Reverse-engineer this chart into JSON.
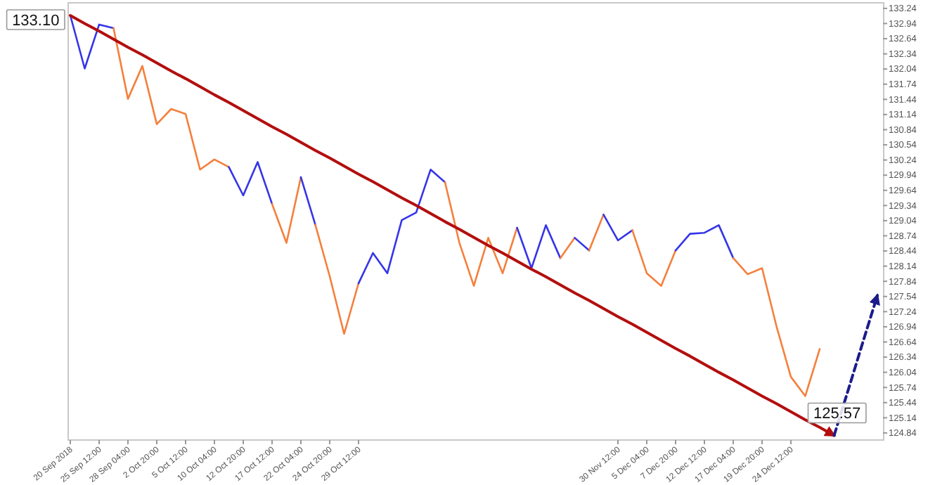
{
  "chart_data": {
    "type": "line",
    "grid": false,
    "categories": [
      "20 Sep 2018",
      null,
      "25 Sep 12:00",
      null,
      "28 Sep 04:00",
      null,
      "2 Oct 20:00",
      null,
      "5 Oct 12:00",
      null,
      "10 Oct 04:00",
      null,
      "12 Oct 20:00",
      null,
      "17 Oct 12:00",
      null,
      "22 Oct 04:00",
      null,
      "24 Oct 20:00",
      null,
      "29 Oct 12:00",
      null,
      null,
      null,
      null,
      null,
      null,
      null,
      null,
      null,
      null,
      null,
      null,
      null,
      null,
      null,
      null,
      null,
      "30 Nov 12:00",
      null,
      "5 Dec 04:00",
      null,
      "7 Dec 20:00",
      null,
      "12 Dec 12:00",
      null,
      "17 Dec 04:00",
      null,
      "19 Dec 20:00",
      null,
      "24 Dec 12:00",
      null,
      null,
      null,
      null,
      null,
      null
    ],
    "ylim": [
      124.7,
      133.35
    ],
    "yticks": [
      124.84,
      125.14,
      125.44,
      125.74,
      126.04,
      126.34,
      126.64,
      126.94,
      127.24,
      127.54,
      127.84,
      128.14,
      128.44,
      128.74,
      129.04,
      129.34,
      129.64,
      129.94,
      130.24,
      130.54,
      130.84,
      131.14,
      131.44,
      131.74,
      132.04,
      132.34,
      132.64,
      132.94,
      133.24
    ],
    "annotations": [
      "133.10",
      "125.57"
    ],
    "series": [
      {
        "color": "#3535e8",
        "values": [
          133.1,
          132.05,
          132.92,
          132.85,
          null,
          null,
          null,
          null,
          null,
          null,
          null,
          null,
          null,
          null,
          null,
          null,
          null,
          null,
          null,
          null,
          null,
          null,
          null,
          null,
          null,
          null,
          null,
          null,
          null,
          null,
          null,
          null,
          null,
          null,
          null,
          null,
          null,
          null,
          null,
          null,
          null,
          null,
          null,
          null,
          null,
          null,
          null,
          null,
          null,
          null,
          null,
          null,
          null,
          null,
          null,
          null,
          null
        ]
      },
      {
        "color": "#f57f3c",
        "values": [
          null,
          null,
          null,
          132.85,
          131.45,
          132.1,
          130.95,
          131.25,
          131.15,
          130.05,
          130.25,
          130.1,
          null,
          null,
          null,
          null,
          null,
          null,
          null,
          null,
          null,
          null,
          null,
          null,
          null,
          null,
          null,
          null,
          null,
          null,
          null,
          null,
          null,
          null,
          null,
          null,
          null,
          null,
          null,
          null,
          null,
          null,
          null,
          null,
          null,
          null,
          null,
          null,
          null,
          null,
          null,
          null,
          null,
          null,
          null,
          null,
          null
        ]
      },
      {
        "color": "#3535e8",
        "values": [
          null,
          null,
          null,
          null,
          null,
          null,
          null,
          null,
          null,
          null,
          null,
          130.1,
          129.54,
          130.2,
          129.37,
          null,
          null,
          null,
          null,
          null,
          null,
          null,
          null,
          null,
          null,
          null,
          null,
          null,
          null,
          null,
          null,
          null,
          null,
          null,
          null,
          null,
          null,
          null,
          null,
          null,
          null,
          null,
          null,
          null,
          null,
          null,
          null,
          null,
          null,
          null,
          null,
          null,
          null,
          null,
          null,
          null,
          null
        ]
      },
      {
        "color": "#f57f3c",
        "values": [
          null,
          null,
          null,
          null,
          null,
          null,
          null,
          null,
          null,
          null,
          null,
          null,
          null,
          null,
          129.37,
          128.6,
          129.9,
          null,
          null,
          null,
          null,
          null,
          null,
          null,
          null,
          null,
          null,
          null,
          null,
          null,
          null,
          null,
          null,
          null,
          null,
          null,
          null,
          null,
          null,
          null,
          null,
          null,
          null,
          null,
          null,
          null,
          null,
          null,
          null,
          null,
          null,
          null,
          null,
          null,
          null,
          null,
          null
        ]
      },
      {
        "color": "#3535e8",
        "values": [
          null,
          null,
          null,
          null,
          null,
          null,
          null,
          null,
          null,
          null,
          null,
          null,
          null,
          null,
          null,
          null,
          129.9,
          128.96,
          null,
          null,
          null,
          null,
          null,
          null,
          null,
          null,
          null,
          null,
          null,
          null,
          null,
          null,
          null,
          null,
          null,
          null,
          null,
          null,
          null,
          null,
          null,
          null,
          null,
          null,
          null,
          null,
          null,
          null,
          null,
          null,
          null,
          null,
          null,
          null,
          null,
          null,
          null
        ]
      },
      {
        "color": "#f57f3c",
        "values": [
          null,
          null,
          null,
          null,
          null,
          null,
          null,
          null,
          null,
          null,
          null,
          null,
          null,
          null,
          null,
          null,
          null,
          128.96,
          127.94,
          126.8,
          127.8,
          null,
          null,
          null,
          null,
          null,
          null,
          null,
          null,
          null,
          null,
          null,
          null,
          null,
          null,
          null,
          null,
          null,
          null,
          null,
          null,
          null,
          null,
          null,
          null,
          null,
          null,
          null,
          null,
          null,
          null,
          null,
          null,
          null,
          null,
          null,
          null
        ]
      },
      {
        "color": "#3535e8",
        "values": [
          null,
          null,
          null,
          null,
          null,
          null,
          null,
          null,
          null,
          null,
          null,
          null,
          null,
          null,
          null,
          null,
          null,
          null,
          null,
          null,
          127.8,
          128.4,
          128.0,
          129.05,
          129.2,
          130.05,
          129.8,
          null,
          null,
          null,
          null,
          null,
          null,
          null,
          null,
          null,
          null,
          null,
          null,
          null,
          null,
          null,
          null,
          null,
          null,
          null,
          null,
          null,
          null,
          null,
          null,
          null,
          null,
          null,
          null,
          null,
          null
        ]
      },
      {
        "color": "#f57f3c",
        "values": [
          null,
          null,
          null,
          null,
          null,
          null,
          null,
          null,
          null,
          null,
          null,
          null,
          null,
          null,
          null,
          null,
          null,
          null,
          null,
          null,
          null,
          null,
          null,
          null,
          null,
          null,
          129.8,
          128.6,
          127.75,
          128.7,
          128.0,
          128.9,
          null,
          null,
          null,
          null,
          null,
          null,
          null,
          null,
          null,
          null,
          null,
          null,
          null,
          null,
          null,
          null,
          null,
          null,
          null,
          null,
          null,
          null,
          null,
          null,
          null
        ]
      },
      {
        "color": "#3535e8",
        "values": [
          null,
          null,
          null,
          null,
          null,
          null,
          null,
          null,
          null,
          null,
          null,
          null,
          null,
          null,
          null,
          null,
          null,
          null,
          null,
          null,
          null,
          null,
          null,
          null,
          null,
          null,
          null,
          null,
          null,
          null,
          null,
          128.9,
          128.1,
          128.95,
          128.3,
          null,
          null,
          null,
          null,
          null,
          null,
          null,
          null,
          null,
          null,
          null,
          null,
          null,
          null,
          null,
          null,
          null,
          null,
          null,
          null,
          null,
          null
        ]
      },
      {
        "color": "#f57f3c",
        "values": [
          null,
          null,
          null,
          null,
          null,
          null,
          null,
          null,
          null,
          null,
          null,
          null,
          null,
          null,
          null,
          null,
          null,
          null,
          null,
          null,
          null,
          null,
          null,
          null,
          null,
          null,
          null,
          null,
          null,
          null,
          null,
          null,
          null,
          null,
          128.3,
          128.7,
          null,
          null,
          null,
          null,
          null,
          null,
          null,
          null,
          null,
          null,
          null,
          null,
          null,
          null,
          null,
          null,
          null,
          null,
          null,
          null,
          null
        ]
      },
      {
        "color": "#3535e8",
        "values": [
          null,
          null,
          null,
          null,
          null,
          null,
          null,
          null,
          null,
          null,
          null,
          null,
          null,
          null,
          null,
          null,
          null,
          null,
          null,
          null,
          null,
          null,
          null,
          null,
          null,
          null,
          null,
          null,
          null,
          null,
          null,
          null,
          null,
          null,
          null,
          128.7,
          128.45,
          null,
          null,
          null,
          null,
          null,
          null,
          null,
          null,
          null,
          null,
          null,
          null,
          null,
          null,
          null,
          null,
          null,
          null,
          null,
          null
        ]
      },
      {
        "color": "#f57f3c",
        "values": [
          null,
          null,
          null,
          null,
          null,
          null,
          null,
          null,
          null,
          null,
          null,
          null,
          null,
          null,
          null,
          null,
          null,
          null,
          null,
          null,
          null,
          null,
          null,
          null,
          null,
          null,
          null,
          null,
          null,
          null,
          null,
          null,
          null,
          null,
          null,
          null,
          128.45,
          129.16,
          null,
          null,
          null,
          null,
          null,
          null,
          null,
          null,
          null,
          null,
          null,
          null,
          null,
          null,
          null,
          null,
          null,
          null,
          null
        ]
      },
      {
        "color": "#3535e8",
        "values": [
          null,
          null,
          null,
          null,
          null,
          null,
          null,
          null,
          null,
          null,
          null,
          null,
          null,
          null,
          null,
          null,
          null,
          null,
          null,
          null,
          null,
          null,
          null,
          null,
          null,
          null,
          null,
          null,
          null,
          null,
          null,
          null,
          null,
          null,
          null,
          null,
          null,
          129.16,
          128.65,
          128.85,
          null,
          null,
          null,
          null,
          null,
          null,
          null,
          null,
          null,
          null,
          null,
          null,
          null,
          null,
          null,
          null,
          null
        ]
      },
      {
        "color": "#f57f3c",
        "values": [
          null,
          null,
          null,
          null,
          null,
          null,
          null,
          null,
          null,
          null,
          null,
          null,
          null,
          null,
          null,
          null,
          null,
          null,
          null,
          null,
          null,
          null,
          null,
          null,
          null,
          null,
          null,
          null,
          null,
          null,
          null,
          null,
          null,
          null,
          null,
          null,
          null,
          null,
          null,
          128.85,
          128.0,
          127.75,
          128.45,
          null,
          null,
          null,
          null,
          null,
          null,
          null,
          null,
          null,
          null,
          null,
          null,
          null,
          null
        ]
      },
      {
        "color": "#3535e8",
        "values": [
          null,
          null,
          null,
          null,
          null,
          null,
          null,
          null,
          null,
          null,
          null,
          null,
          null,
          null,
          null,
          null,
          null,
          null,
          null,
          null,
          null,
          null,
          null,
          null,
          null,
          null,
          null,
          null,
          null,
          null,
          null,
          null,
          null,
          null,
          null,
          null,
          null,
          null,
          null,
          null,
          null,
          null,
          128.45,
          128.78,
          128.8,
          128.95,
          128.3,
          null,
          null,
          null,
          null,
          null,
          null,
          null,
          null,
          null,
          null
        ]
      },
      {
        "color": "#f57f3c",
        "values": [
          null,
          null,
          null,
          null,
          null,
          null,
          null,
          null,
          null,
          null,
          null,
          null,
          null,
          null,
          null,
          null,
          null,
          null,
          null,
          null,
          null,
          null,
          null,
          null,
          null,
          null,
          null,
          null,
          null,
          null,
          null,
          null,
          null,
          null,
          null,
          null,
          null,
          null,
          null,
          null,
          null,
          null,
          null,
          null,
          null,
          null,
          128.3,
          127.98,
          128.1,
          126.95,
          125.95,
          125.57,
          126.5,
          null,
          null,
          null,
          null
        ]
      },
      {
        "color": "#b30e0e",
        "line_style": "solid",
        "values": [
          133.1,
          132.94,
          132.79,
          132.63,
          132.47,
          132.32,
          132.16,
          132.0,
          131.85,
          131.69,
          131.53,
          131.38,
          131.22,
          131.06,
          130.9,
          130.75,
          130.59,
          130.43,
          130.28,
          130.12,
          129.96,
          129.81,
          129.65,
          129.49,
          129.34,
          129.18,
          129.02,
          128.87,
          128.71,
          128.55,
          128.4,
          128.24,
          128.08,
          127.93,
          127.77,
          127.61,
          127.46,
          127.3,
          127.14,
          126.99,
          126.83,
          126.67,
          126.51,
          126.36,
          126.2,
          126.04,
          125.89,
          125.73,
          125.57,
          125.42,
          125.26,
          125.1,
          124.95,
          124.79,
          null,
          null,
          null
        ]
      },
      {
        "color": "#1c1c8c",
        "line_style": "dashed",
        "values": [
          null,
          null,
          null,
          null,
          null,
          null,
          null,
          null,
          null,
          null,
          null,
          null,
          null,
          null,
          null,
          null,
          null,
          null,
          null,
          null,
          null,
          null,
          null,
          null,
          null,
          null,
          null,
          null,
          null,
          null,
          null,
          null,
          null,
          null,
          null,
          null,
          null,
          null,
          null,
          null,
          null,
          null,
          null,
          null,
          null,
          null,
          null,
          null,
          null,
          null,
          null,
          null,
          null,
          124.79,
          125.71,
          126.64,
          127.56
        ]
      }
    ]
  }
}
